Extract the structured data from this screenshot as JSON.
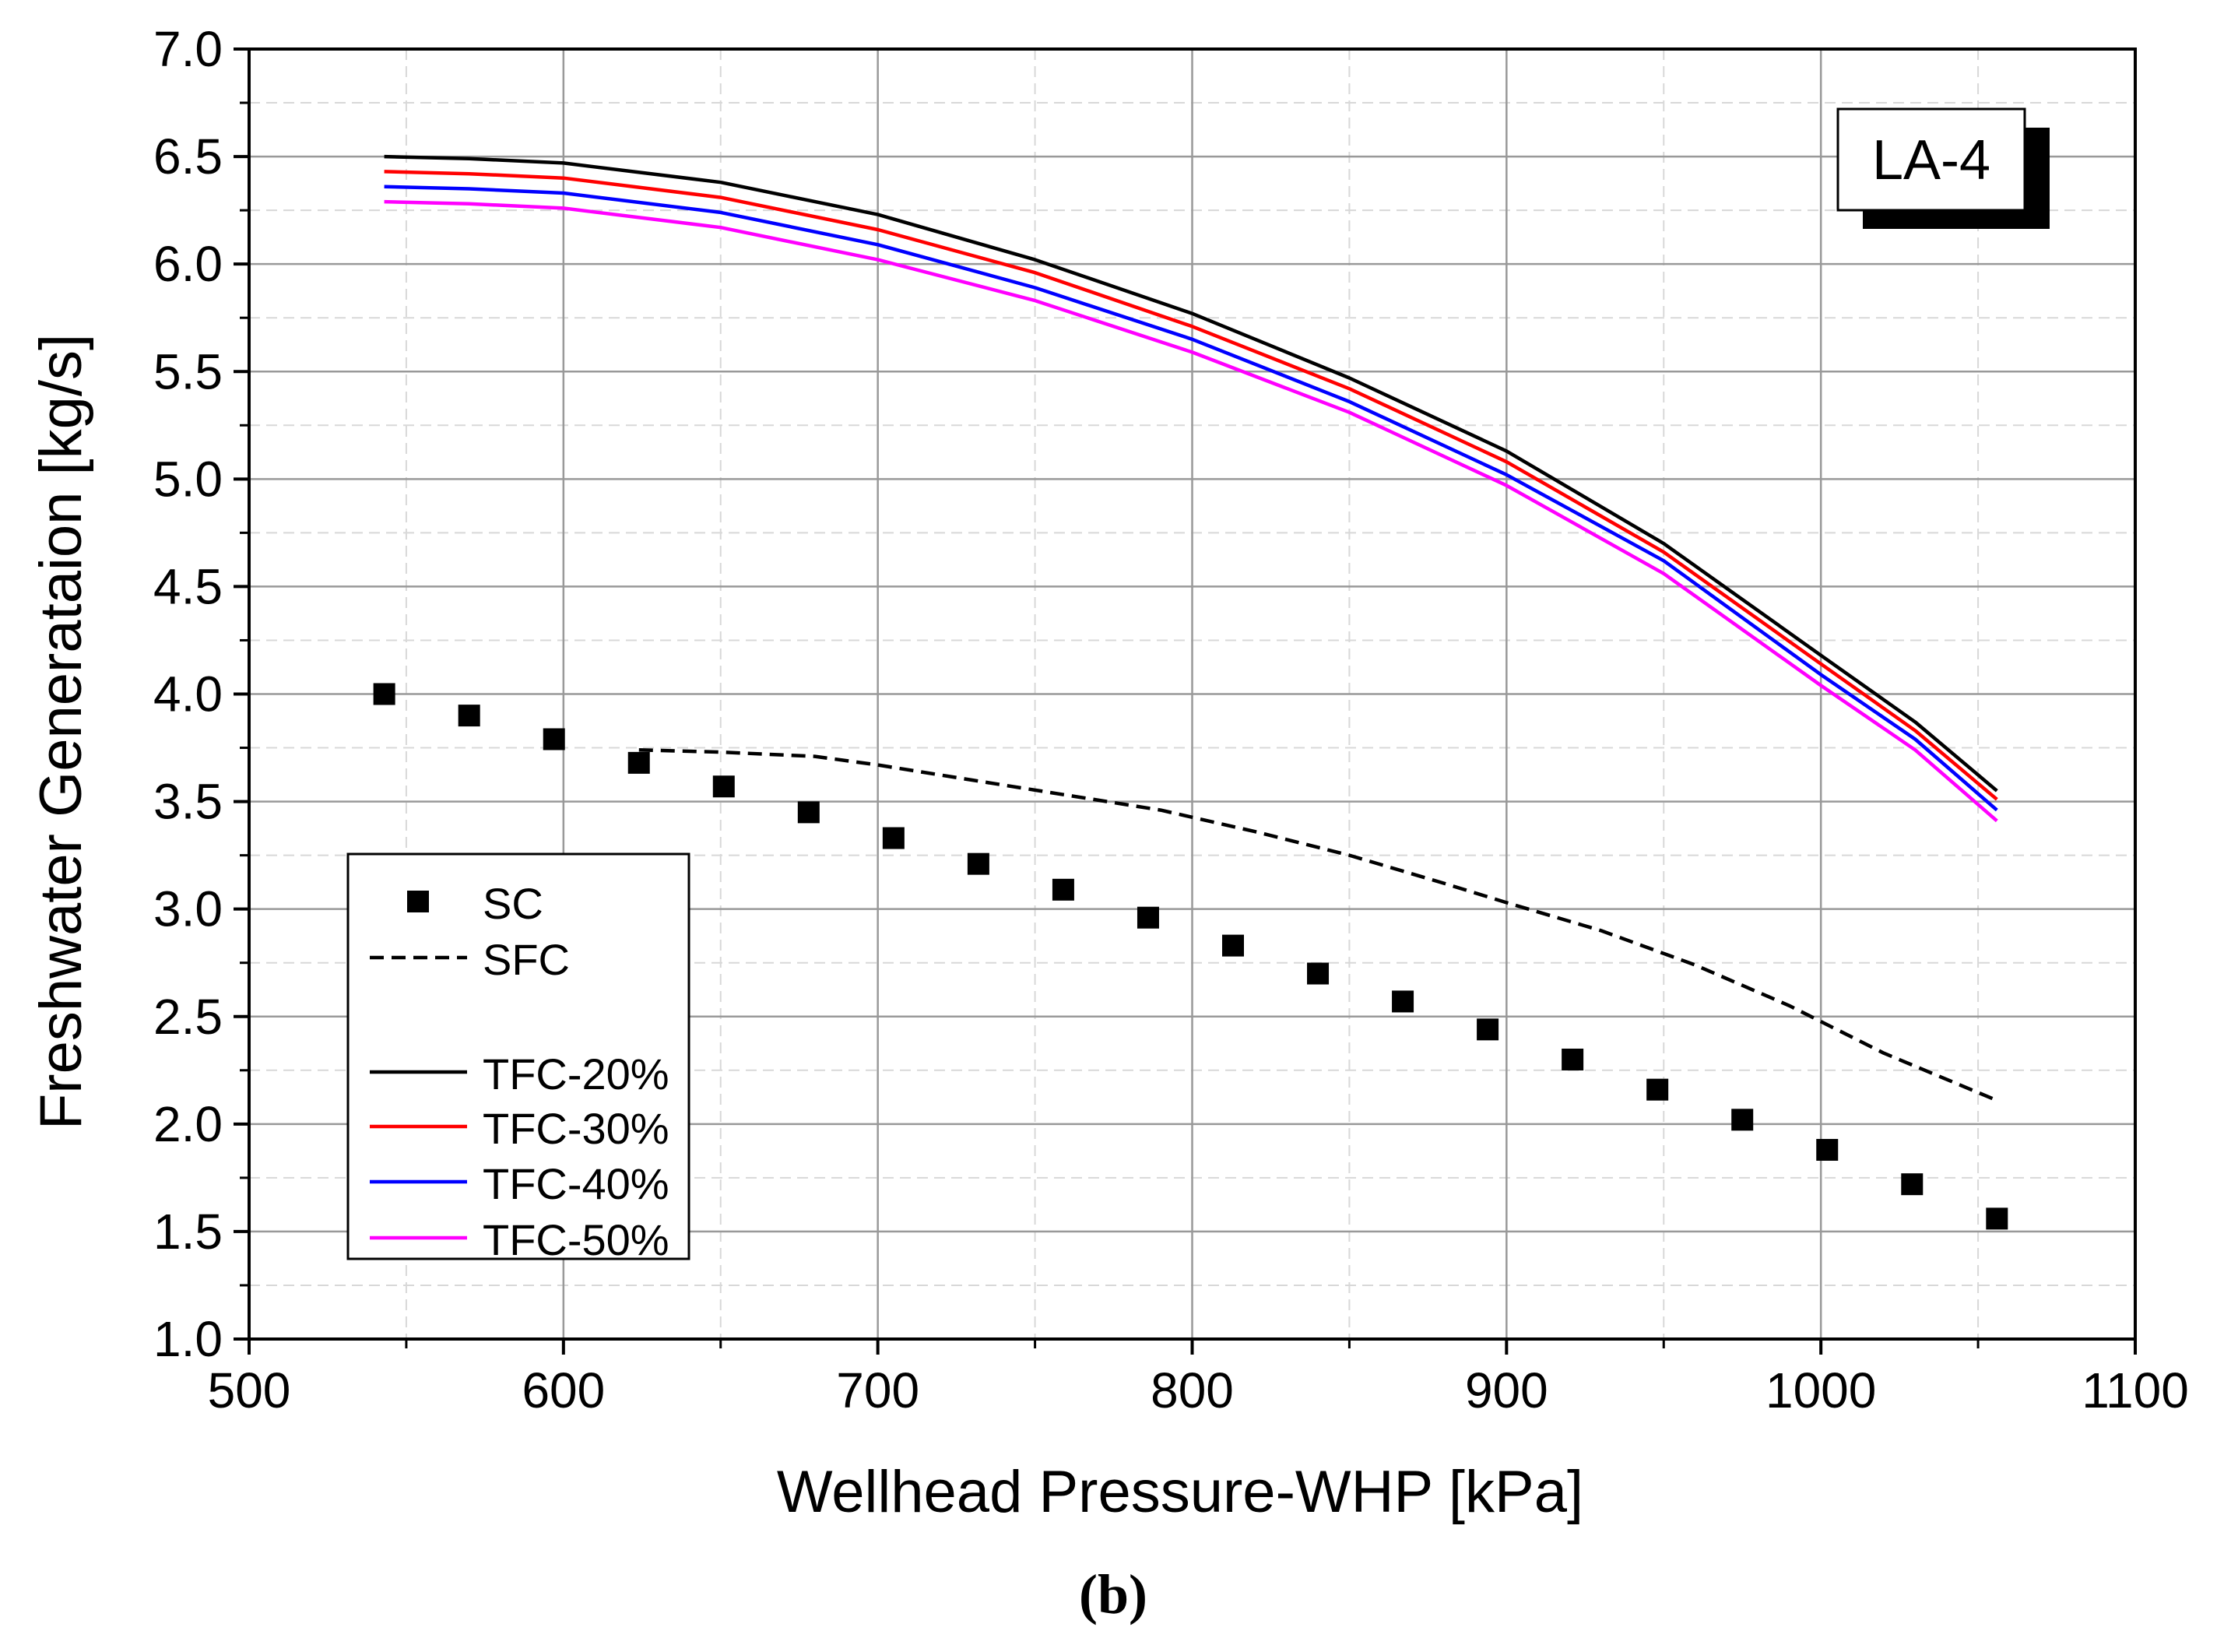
{
  "chart_data": {
    "type": "line",
    "title": "",
    "xlabel": "Wellhead Pressure-WHP [kPa]",
    "ylabel": "Freshwater Generataion [kg/s]",
    "xlim": [
      500,
      1100
    ],
    "ylim": [
      1.0,
      7.0
    ],
    "xticks": [
      500,
      600,
      700,
      800,
      900,
      1000,
      1100
    ],
    "xtick_labels": [
      "500",
      "600",
      "700",
      "800",
      "900",
      "1000",
      "1100"
    ],
    "yticks": [
      1.0,
      1.5,
      2.0,
      2.5,
      3.0,
      3.5,
      4.0,
      4.5,
      5.0,
      5.5,
      6.0,
      6.5,
      7.0
    ],
    "ytick_labels": [
      "1.0",
      "1.5",
      "2.0",
      "2.5",
      "3.0",
      "3.5",
      "4.0",
      "4.5",
      "5.0",
      "5.5",
      "6.0",
      "6.5",
      "7.0"
    ],
    "grid": true,
    "legend_position": "bottom-left",
    "annotation": "LA-4",
    "caption": "(b)",
    "series": [
      {
        "name": "SC",
        "style": "markers",
        "color": "#000000",
        "x": [
          543,
          570,
          597,
          624,
          651,
          678,
          705,
          732,
          759,
          786,
          813,
          840,
          867,
          894,
          921,
          948,
          975,
          1002,
          1029,
          1056
        ],
        "y": [
          4.0,
          3.9,
          3.79,
          3.68,
          3.57,
          3.45,
          3.33,
          3.21,
          3.09,
          2.96,
          2.83,
          2.7,
          2.57,
          2.44,
          2.3,
          2.16,
          2.02,
          1.88,
          1.72,
          1.56
        ]
      },
      {
        "name": "SFC",
        "style": "dashed",
        "color": "#000000",
        "x": [
          624,
          650,
          680,
          700,
          730,
          760,
          790,
          820,
          850,
          880,
          900,
          930,
          960,
          990,
          1020,
          1056
        ],
        "y": [
          3.74,
          3.73,
          3.71,
          3.67,
          3.6,
          3.53,
          3.46,
          3.36,
          3.25,
          3.12,
          3.03,
          2.9,
          2.74,
          2.55,
          2.33,
          2.11
        ]
      },
      {
        "name": "TFC-20%",
        "style": "solid",
        "color": "#000000",
        "x": [
          543,
          570,
          600,
          650,
          700,
          750,
          800,
          850,
          900,
          950,
          1000,
          1030,
          1056
        ],
        "y": [
          6.5,
          6.49,
          6.47,
          6.38,
          6.23,
          6.02,
          5.77,
          5.47,
          5.13,
          4.7,
          4.18,
          3.87,
          3.55
        ]
      },
      {
        "name": "TFC-30%",
        "style": "solid",
        "color": "#ff0000",
        "x": [
          543,
          570,
          600,
          650,
          700,
          750,
          800,
          850,
          900,
          950,
          1000,
          1030,
          1056
        ],
        "y": [
          6.43,
          6.42,
          6.4,
          6.31,
          6.16,
          5.96,
          5.71,
          5.42,
          5.08,
          4.66,
          4.14,
          3.83,
          3.51
        ]
      },
      {
        "name": "TFC-40%",
        "style": "solid",
        "color": "#0000ff",
        "x": [
          543,
          570,
          600,
          650,
          700,
          750,
          800,
          850,
          900,
          950,
          1000,
          1030,
          1056
        ],
        "y": [
          6.36,
          6.35,
          6.33,
          6.24,
          6.09,
          5.89,
          5.65,
          5.36,
          5.02,
          4.62,
          4.09,
          3.79,
          3.46
        ]
      },
      {
        "name": "TFC-50%",
        "style": "solid",
        "color": "#ff00ff",
        "x": [
          543,
          570,
          600,
          650,
          700,
          750,
          800,
          850,
          900,
          950,
          1000,
          1030,
          1056
        ],
        "y": [
          6.29,
          6.28,
          6.26,
          6.17,
          6.02,
          5.83,
          5.59,
          5.31,
          4.97,
          4.56,
          4.04,
          3.74,
          3.41
        ]
      }
    ]
  }
}
